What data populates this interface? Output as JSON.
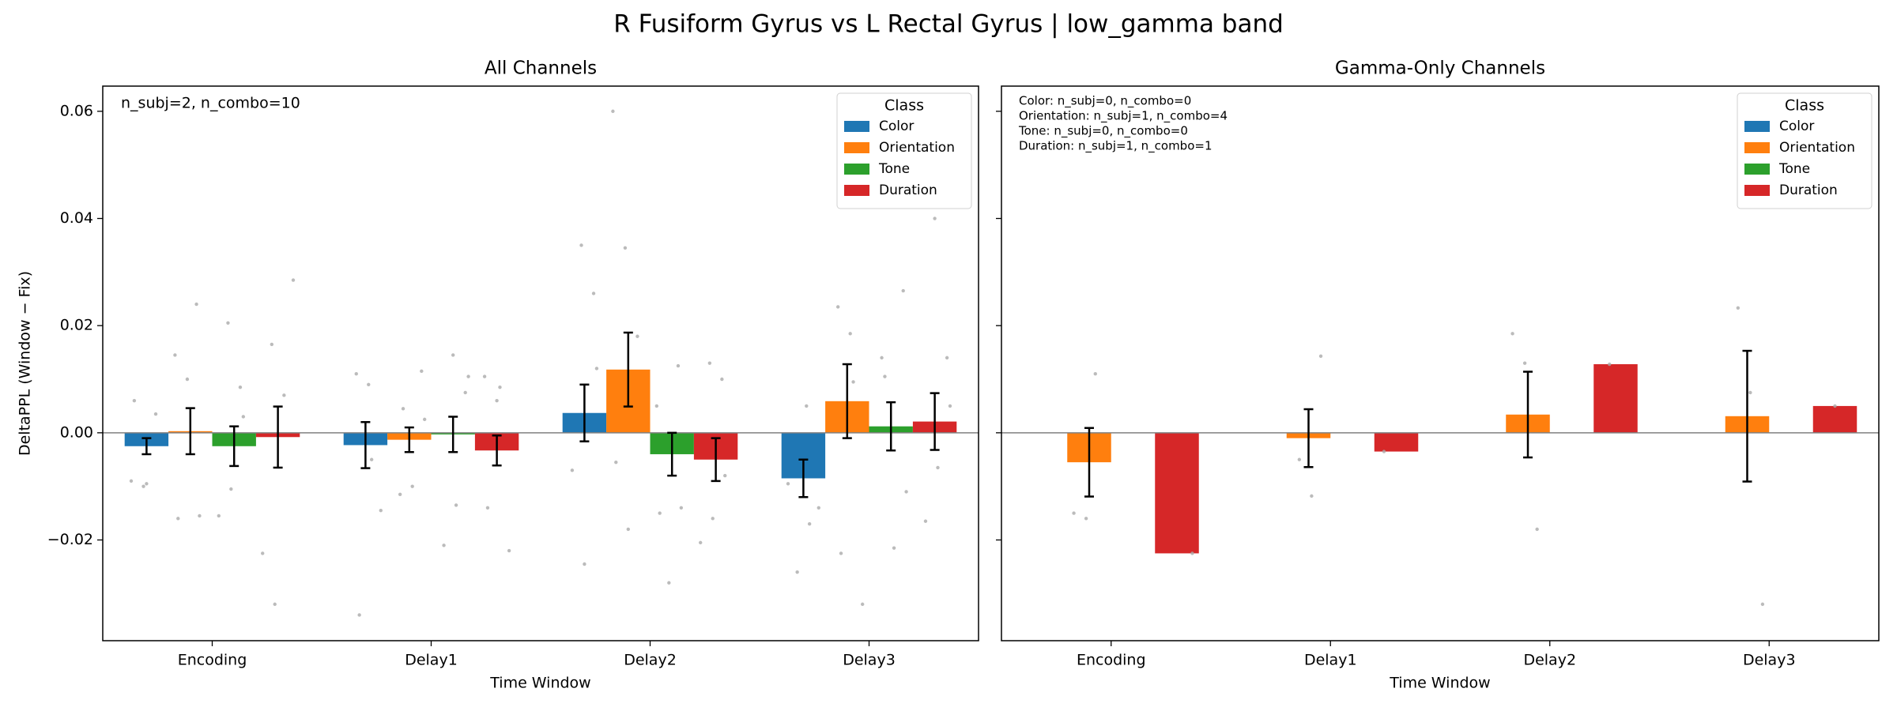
{
  "title": "R Fusiform Gyrus vs L Rectal Gyrus  |  low_gamma band",
  "chart_data": [
    {
      "type": "bar",
      "title": "All Channels",
      "xlabel": "Time Window",
      "ylabel": "DeltaPPL (Window − Fix)",
      "categories": [
        "Encoding",
        "Delay1",
        "Delay2",
        "Delay3"
      ],
      "ylim": [
        -0.0388,
        0.0647
      ],
      "yticks": [
        {
          "value": -0.02,
          "label": "−0.02"
        },
        {
          "value": 0,
          "label": "0.00"
        },
        {
          "value": 0.02,
          "label": "0.02"
        },
        {
          "value": 0.04,
          "label": "0.04"
        },
        {
          "value": 0.06,
          "label": "0.06"
        }
      ],
      "annotation": [
        "n_subj=2, n_combo=10"
      ],
      "legend_title": "Class",
      "legend": "upper right",
      "series": [
        {
          "name": "Color",
          "color": "#1f77b4",
          "values": [
            -0.0025,
            -0.0023,
            0.0037,
            -0.0085
          ],
          "errors": [
            0.0015,
            0.0043,
            0.0053,
            0.0035
          ],
          "points": [
            [
              -0.009,
              -0.01,
              0.0035,
              0.006,
              -0.0095
            ],
            [
              0.011,
              0.009,
              -0.0145,
              -0.034,
              -0.005
            ],
            [
              0.035,
              0.026,
              -0.007,
              -0.0245,
              0.012
            ],
            [
              0.005,
              -0.014,
              -0.026,
              -0.017,
              -0.0095
            ]
          ]
        },
        {
          "name": "Orientation",
          "color": "#ff7f0e",
          "values": [
            0.0003,
            -0.0013,
            0.0118,
            0.0059
          ],
          "errors": [
            0.0043,
            0.0023,
            0.0069,
            0.0069
          ],
          "points": [
            [
              0.024,
              0.0145,
              0.01,
              -0.0155,
              -0.016
            ],
            [
              0.0115,
              -0.0115,
              -0.01,
              0.0025,
              0.0045
            ],
            [
              0.06,
              0.0345,
              0.018,
              -0.0055,
              -0.018
            ],
            [
              0.0235,
              0.0185,
              -0.032,
              -0.0225,
              0.0095
            ]
          ]
        },
        {
          "name": "Tone",
          "color": "#2ca02c",
          "values": [
            -0.0025,
            -0.0003,
            -0.004,
            0.0012
          ],
          "errors": [
            0.0037,
            0.0033,
            0.004,
            0.0045
          ],
          "points": [
            [
              0.0205,
              0.0085,
              -0.0155,
              -0.0105,
              0.003
            ],
            [
              0.0145,
              0.0075,
              -0.021,
              -0.0135,
              0.0105
            ],
            [
              0.0125,
              0.005,
              -0.028,
              -0.014,
              -0.015
            ],
            [
              0.0265,
              0.014,
              -0.0215,
              -0.011,
              0.0105
            ]
          ]
        },
        {
          "name": "Duration",
          "color": "#d62728",
          "values": [
            -0.0008,
            -0.0033,
            -0.005,
            0.0021
          ],
          "errors": [
            0.0057,
            0.0028,
            0.004,
            0.0053
          ],
          "points": [
            [
              0.0285,
              0.0165,
              0.007,
              -0.0225,
              -0.032
            ],
            [
              0.0105,
              0.006,
              -0.022,
              -0.014,
              0.0085
            ],
            [
              0.013,
              0.01,
              -0.0205,
              -0.016,
              -0.008
            ],
            [
              0.04,
              0.014,
              -0.0165,
              -0.0065,
              0.005
            ]
          ]
        }
      ]
    },
    {
      "type": "bar",
      "title": "Gamma-Only Channels",
      "xlabel": "Time Window",
      "sharey": true,
      "categories": [
        "Encoding",
        "Delay1",
        "Delay2",
        "Delay3"
      ],
      "annotation": [
        "Color: n_subj=0, n_combo=0",
        "Orientation: n_subj=1, n_combo=4",
        "Tone: n_subj=0, n_combo=0",
        "Duration: n_subj=1, n_combo=1"
      ],
      "legend_title": "Class",
      "legend": "upper right",
      "series": [
        {
          "name": "Color",
          "color": "#1f77b4",
          "values": [
            null,
            null,
            null,
            null
          ],
          "errors": [
            null,
            null,
            null,
            null
          ],
          "points": [
            [],
            [],
            [],
            []
          ]
        },
        {
          "name": "Orientation",
          "color": "#ff7f0e",
          "values": [
            -0.0055,
            -0.001,
            0.0034,
            0.0031
          ],
          "errors": [
            0.0064,
            0.0054,
            0.008,
            0.0122
          ],
          "points": [
            [
              0.011,
              -0.015,
              -0.016
            ],
            [
              0.0143,
              -0.005,
              -0.0118
            ],
            [
              0.0185,
              0.013,
              -0.018
            ],
            [
              0.0233,
              0.0075,
              -0.032
            ]
          ]
        },
        {
          "name": "Tone",
          "color": "#2ca02c",
          "values": [
            null,
            null,
            null,
            null
          ],
          "errors": [
            null,
            null,
            null,
            null
          ],
          "points": [
            [],
            [],
            [],
            []
          ]
        },
        {
          "name": "Duration",
          "color": "#d62728",
          "values": [
            -0.0225,
            -0.0035,
            0.0128,
            0.005
          ],
          "errors": [
            null,
            null,
            null,
            null
          ],
          "points": [
            [
              -0.0225
            ],
            [
              -0.0035
            ],
            [
              0.0128
            ],
            [
              0.005
            ]
          ]
        }
      ]
    }
  ]
}
